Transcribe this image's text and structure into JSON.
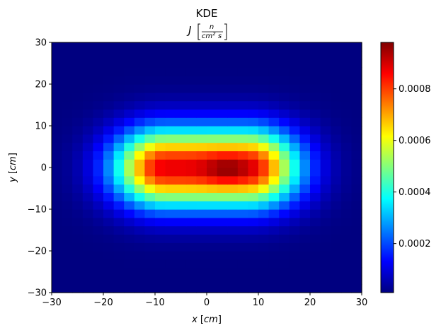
{
  "chart_data": {
    "type": "heatmap",
    "title": "KDE",
    "subtitle": {
      "symbol": "J",
      "numerator": "n",
      "denominator_base": "cm",
      "denominator_exp": "2",
      "denominator_tail": " s"
    },
    "xlabel": {
      "symbol": "x",
      "unit": "cm"
    },
    "ylabel": {
      "symbol": "y",
      "unit": "cm"
    },
    "xlim": [
      -30,
      30
    ],
    "ylim": [
      -30,
      30
    ],
    "x_ticks": [
      -30,
      -20,
      -10,
      0,
      10,
      20,
      30
    ],
    "y_ticks": [
      -30,
      -20,
      -10,
      0,
      10,
      20,
      30
    ],
    "x_tick_labels": [
      "−30",
      "−20",
      "−10",
      "0",
      "10",
      "20",
      "30"
    ],
    "y_tick_labels": [
      "−30",
      "−20",
      "−10",
      "0",
      "10",
      "20",
      "30"
    ],
    "bins_x": 30,
    "bins_y": 30,
    "colormap": "jet",
    "colorbar": {
      "min": 1e-05,
      "max": 0.00098,
      "ticks": [
        0.0002,
        0.0004,
        0.0006,
        0.0008
      ],
      "tick_labels": [
        "0.0002",
        "0.0004",
        "0.0006",
        "0.0008"
      ]
    },
    "density_model": {
      "peak": 0.00097,
      "background": 1e-05,
      "plateau_halfwidth_x": 8,
      "sigma_x": 7,
      "sigma_y": 6.5,
      "peak_center_x": 4,
      "peak_center_y": -0.5
    },
    "grid": false
  }
}
